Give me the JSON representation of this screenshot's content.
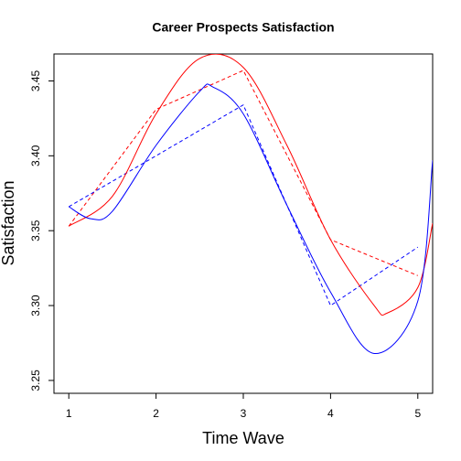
{
  "chart_data": {
    "type": "line",
    "title": "Career Prospects Satisfaction",
    "xlabel": "Time Wave",
    "ylabel": "Satisfaction",
    "xlim": [
      0.83,
      5.17
    ],
    "ylim": [
      3.2414,
      3.468
    ],
    "xticks": [
      1,
      2,
      3,
      4,
      5
    ],
    "yticks": [
      3.25,
      {
        "value": 3.3,
        "label": "3.30"
      },
      3.35,
      {
        "value": 3.4,
        "label": "3.40"
      },
      3.45
    ],
    "grid": false,
    "series": [
      {
        "color": "#ff0000",
        "style": "dashed",
        "x": [
          1,
          2,
          3,
          4,
          5
        ],
        "values": [
          3.353,
          3.431,
          3.457,
          3.344,
          3.32
        ]
      },
      {
        "color": "#0000ff",
        "style": "dashed",
        "x": [
          1,
          2,
          3,
          4,
          5
        ],
        "values": [
          3.366,
          3.4,
          3.434,
          3.3,
          3.339
        ]
      },
      {
        "color": "#ff0000",
        "style": "solid",
        "x": [
          1,
          1.5,
          2,
          2.5,
          3,
          3.5,
          4,
          4.5,
          4.65,
          5,
          5.17
        ],
        "values": [
          3.353,
          3.373,
          3.428,
          3.465,
          3.459,
          3.407,
          3.344,
          3.3,
          3.295,
          3.312,
          3.355
        ]
      },
      {
        "color": "#0000ff",
        "style": "solid",
        "x": [
          1,
          1.25,
          1.5,
          2,
          2.5,
          2.65,
          3,
          3.5,
          4,
          4.5,
          5,
          5.17
        ],
        "values": [
          3.366,
          3.358,
          3.363,
          3.407,
          3.443,
          3.446,
          3.428,
          3.367,
          3.309,
          3.268,
          3.303,
          3.397
        ]
      }
    ]
  }
}
